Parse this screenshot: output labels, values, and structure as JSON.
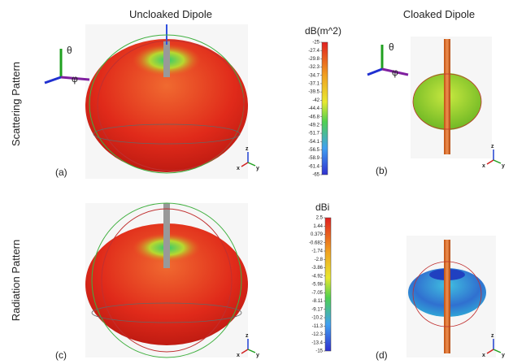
{
  "header": {
    "left_title": "Uncloaked Dipole",
    "right_title": "Cloaked Dipole"
  },
  "rows": [
    "Scattering Pattern",
    "Radiation Pattern"
  ],
  "panels": [
    "(a)",
    "(b)",
    "(c)",
    "(d)"
  ],
  "colorbars": [
    {
      "unit": "dB(m^2)",
      "ticks": [
        "-25",
        "-27.4",
        "-29.8",
        "-32.3",
        "-34.7",
        "-37.1",
        "-39.5",
        "-42",
        "-44.4",
        "-46.8",
        "-49.2",
        "-51.7",
        "-54.1",
        "-56.5",
        "-58.9",
        "-61.4",
        "-65"
      ]
    },
    {
      "unit": "dBi",
      "ticks": [
        "2.5",
        "1.44",
        "0.379",
        "-0.682",
        "-1.74",
        "-2.8",
        "-3.86",
        "-4.92",
        "-5.98",
        "-7.05",
        "-8.11",
        "-9.17",
        "-10.2",
        "-11.3",
        "-12.3",
        "-13.4",
        "-15"
      ]
    }
  ],
  "axes": {
    "theta": "θ",
    "phi": "φ",
    "x": "x",
    "y": "y",
    "z": "z"
  }
}
